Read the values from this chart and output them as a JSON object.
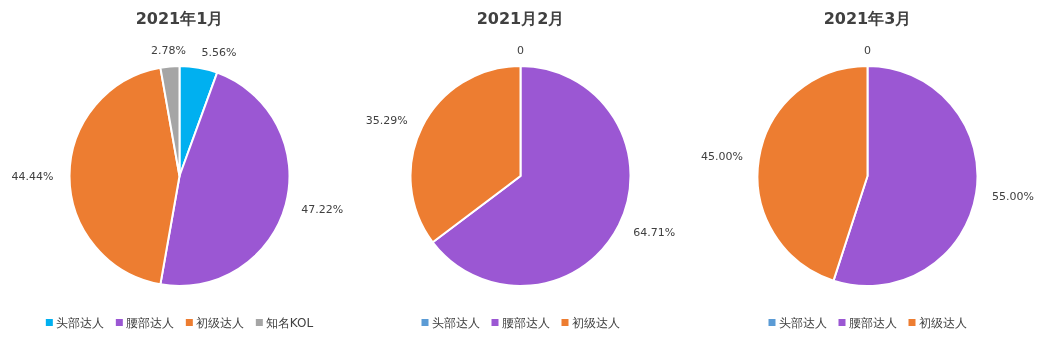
{
  "chart_data": [
    {
      "type": "pie",
      "title": "2021年1月",
      "categories": [
        "头部达人",
        "腰部达人",
        "初级达人",
        "知名KOL"
      ],
      "values": [
        5.56,
        47.22,
        44.44,
        2.78
      ],
      "colors": [
        "#00b0f0",
        "#9b57d3",
        "#ed7d31",
        "#a5a5a5"
      ],
      "value_labels": [
        "5.56%",
        "47.22%",
        "44.44%",
        "2.78%"
      ],
      "legend": "bottom"
    },
    {
      "type": "pie",
      "title": "2021月2月",
      "categories": [
        "头部达人",
        "腰部达人",
        "初级达人"
      ],
      "values": [
        0,
        64.71,
        35.29
      ],
      "colors": [
        "#5b9bd5",
        "#9b57d3",
        "#ed7d31"
      ],
      "value_labels": [
        "0",
        "64.71%",
        "35.29%"
      ],
      "legend": "bottom"
    },
    {
      "type": "pie",
      "title": "2021年3月",
      "categories": [
        "头部达人",
        "腰部达人",
        "初级达人"
      ],
      "values": [
        0,
        55.0,
        45.0
      ],
      "colors": [
        "#5b9bd5",
        "#9b57d3",
        "#ed7d31"
      ],
      "value_labels": [
        "0",
        "55.00%",
        "45.00%"
      ],
      "legend": "bottom"
    }
  ]
}
